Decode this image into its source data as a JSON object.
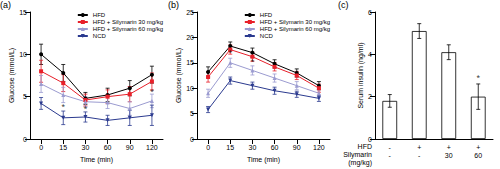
{
  "chart_data": [
    {
      "type": "line",
      "title": "(a)",
      "xlabel": "Time (min)",
      "ylabel": "Glucose (mmol/L)",
      "categories": [
        "0",
        "15",
        "30",
        "60",
        "90",
        "120"
      ],
      "ylim": [
        0,
        15
      ],
      "yticks": [
        0,
        5,
        10,
        15
      ],
      "grid": false,
      "legend": "top-right",
      "series": [
        {
          "name": "HFD",
          "color": "#000000",
          "marker": "circle",
          "values": [
            10.0,
            7.8,
            4.8,
            5.2,
            6.0,
            7.6
          ],
          "errors": [
            1.2,
            1.0,
            0.7,
            0.8,
            0.9,
            1.0
          ]
        },
        {
          "name": "HFD + Silymarin 30 mg/kg",
          "color": "#e8202a",
          "marker": "square",
          "values": [
            8.0,
            6.6,
            4.6,
            5.0,
            5.3,
            6.8
          ],
          "errors": [
            1.3,
            1.0,
            0.7,
            0.8,
            0.9,
            1.0
          ]
        },
        {
          "name": "HFD + Silymarin 60 mg/kg",
          "color": "#9b9bd0",
          "marker": "triangle",
          "values": [
            6.5,
            5.2,
            4.4,
            4.3,
            3.6,
            4.5
          ],
          "errors": [
            1.0,
            0.9,
            0.6,
            0.7,
            0.8,
            0.8
          ]
        },
        {
          "name": "NCD",
          "color": "#2b3a8f",
          "marker": "inverted-triangle",
          "values": [
            4.2,
            2.5,
            2.6,
            2.2,
            2.5,
            2.8
          ],
          "errors": [
            0.7,
            0.8,
            0.6,
            0.6,
            0.9,
            1.2
          ]
        }
      ],
      "annotations": [
        {
          "x": "15",
          "y": 3.8,
          "text": "*"
        },
        {
          "x": "30",
          "y": 3.5,
          "text": "*"
        },
        {
          "x": "120",
          "y": 5.5,
          "text": "*"
        }
      ]
    },
    {
      "type": "line",
      "title": "(b)",
      "xlabel": "Time (min)",
      "ylabel": "Glucose (mmol/L)",
      "categories": [
        "0",
        "15",
        "30",
        "60",
        "90",
        "120"
      ],
      "ylim": [
        0,
        25
      ],
      "yticks": [
        0,
        5,
        10,
        15,
        20,
        25
      ],
      "grid": false,
      "legend": "top-right",
      "series": [
        {
          "name": "HFD",
          "color": "#000000",
          "marker": "circle",
          "values": [
            13.2,
            18.3,
            17.0,
            14.8,
            13.0,
            10.5
          ],
          "errors": [
            1.0,
            0.8,
            0.9,
            0.8,
            0.8,
            0.8
          ]
        },
        {
          "name": "HFD + Silymarin 30 mg/kg",
          "color": "#e8202a",
          "marker": "square",
          "values": [
            12.2,
            17.6,
            16.2,
            14.2,
            12.5,
            10.0
          ],
          "errors": [
            1.0,
            0.9,
            0.9,
            0.8,
            0.8,
            0.8
          ]
        },
        {
          "name": "HFD + Silymarin 60 mg/kg",
          "color": "#9b9bd0",
          "marker": "triangle",
          "values": [
            9.0,
            15.0,
            13.5,
            12.0,
            10.5,
            9.0
          ],
          "errors": [
            0.8,
            0.9,
            0.9,
            0.8,
            0.8,
            0.7
          ]
        },
        {
          "name": "NCD",
          "color": "#2b3a8f",
          "marker": "inverted-triangle",
          "values": [
            5.8,
            11.5,
            10.5,
            9.5,
            8.8,
            8.0
          ],
          "errors": [
            0.6,
            0.7,
            0.7,
            0.7,
            0.6,
            0.6
          ]
        }
      ],
      "annotations": [
        {
          "x": "15",
          "y": 16.9,
          "text": "*"
        },
        {
          "x": "30",
          "y": 15.2,
          "text": "*"
        }
      ]
    },
    {
      "type": "bar",
      "title": "(c)",
      "ylabel": "Serum insulin (ng/ml)",
      "categories": [
        "-\n-",
        "+\n-",
        "+\n30",
        "+\n60"
      ],
      "row_labels": [
        "HFD",
        "Silymarin",
        "(mg/kg)"
      ],
      "values": [
        1.8,
        5.1,
        4.1,
        2.0
      ],
      "errors": [
        0.3,
        0.35,
        0.35,
        0.6
      ],
      "color": "#ffffff",
      "ylim": [
        0,
        6
      ],
      "yticks": [
        0,
        2,
        4,
        6
      ],
      "grid": false,
      "annotations": [
        {
          "x": "+\n60",
          "y": 2.9,
          "text": "*"
        }
      ]
    }
  ]
}
